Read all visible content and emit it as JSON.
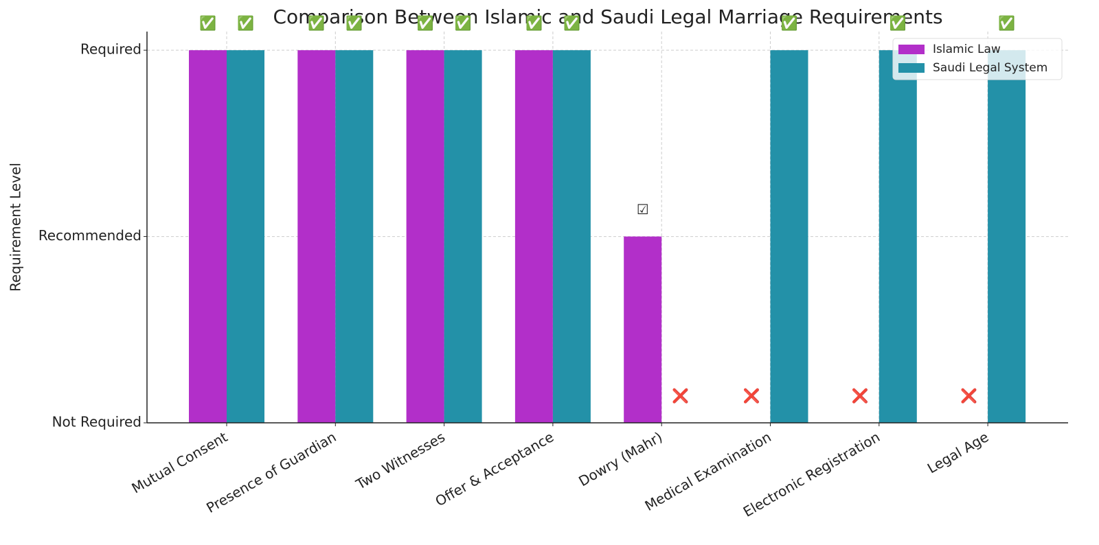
{
  "chart_data": {
    "type": "bar",
    "title": "Comparison Between Islamic and Saudi Legal Marriage Requirements",
    "y_label": "Requirement Level",
    "categories": [
      "Mutual Consent",
      "Presence of Guardian",
      "Two Witnesses",
      "Offer & Acceptance",
      "Dowry (Mahr)",
      "Medical Examination",
      "Electronic Registration",
      "Legal Age"
    ],
    "series": [
      {
        "name": "Islamic Law",
        "color": "#b22fc9",
        "values": [
          2,
          2,
          2,
          2,
          1,
          0,
          0,
          0
        ],
        "value_labels": [
          "✅",
          "✅",
          "✅",
          "✅",
          "☑",
          "❌",
          "❌",
          "❌"
        ]
      },
      {
        "name": "Saudi Legal System",
        "color": "#2391a8",
        "values": [
          2,
          2,
          2,
          2,
          0,
          2,
          2,
          2
        ],
        "value_labels": [
          "✅",
          "✅",
          "✅",
          "✅",
          "❌",
          "✅",
          "✅",
          "✅"
        ]
      }
    ],
    "ylim": [
      0,
      2.1
    ],
    "yticks": [
      {
        "value": 0,
        "label": "Not Required"
      },
      {
        "value": 1,
        "label": "Recommended"
      },
      {
        "value": 2,
        "label": "Required"
      }
    ],
    "grid": true,
    "legend": "upper right"
  }
}
